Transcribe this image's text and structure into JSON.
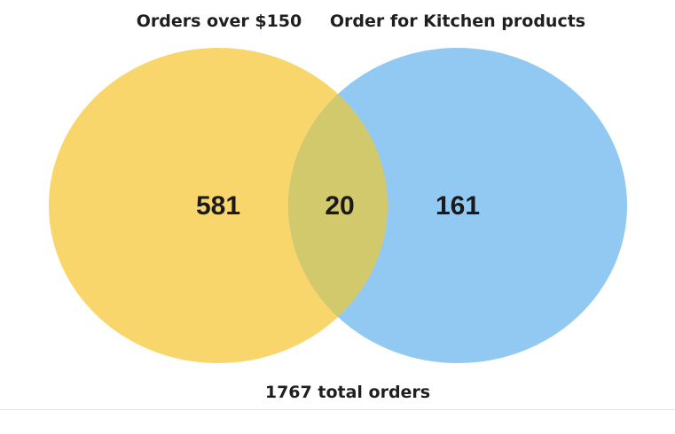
{
  "venn": {
    "set_a": {
      "label": "Orders over $150",
      "only_count": "581",
      "color": "#f9d66b"
    },
    "set_b": {
      "label": "Order for Kitchen products",
      "only_count": "161",
      "color": "#92c9f3"
    },
    "intersection": {
      "count": "20",
      "color": "#d2c86c"
    },
    "total_label": "1767 total orders"
  }
}
